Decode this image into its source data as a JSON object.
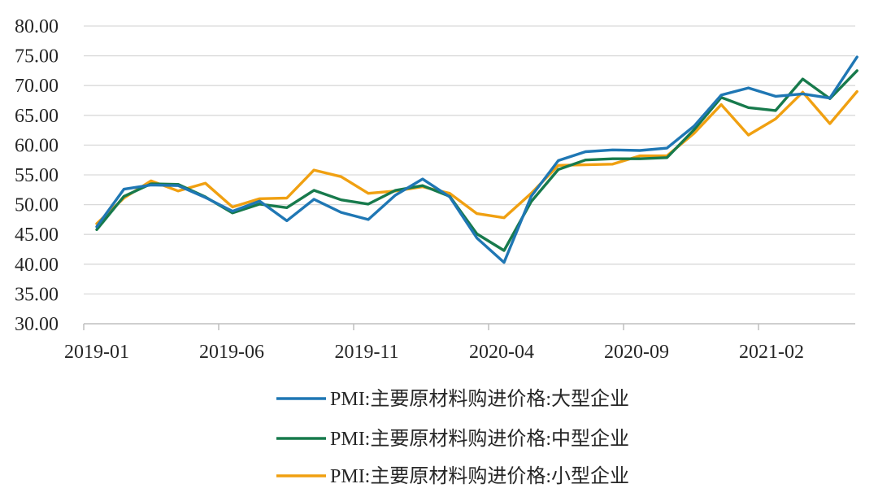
{
  "chart_data": {
    "type": "line",
    "x": [
      "2019-01",
      "2019-02",
      "2019-03",
      "2019-04",
      "2019-05",
      "2019-06",
      "2019-07",
      "2019-08",
      "2019-09",
      "2019-10",
      "2019-11",
      "2019-12",
      "2020-01",
      "2020-02",
      "2020-03",
      "2020-04",
      "2020-05",
      "2020-06",
      "2020-07",
      "2020-08",
      "2020-09",
      "2020-10",
      "2020-11",
      "2020-12",
      "2021-01",
      "2021-02",
      "2021-03",
      "2021-04",
      "2021-05"
    ],
    "x_tick_labels": [
      "2019-01",
      "2019-06",
      "2019-11",
      "2020-04",
      "2020-09",
      "2021-02"
    ],
    "y_tick_labels": [
      "80.00",
      "75.00",
      "70.00",
      "65.00",
      "60.00",
      "55.00",
      "50.00",
      "45.00",
      "40.00",
      "35.00",
      "30.00"
    ],
    "ylim": [
      30,
      80
    ],
    "grid": true,
    "legend_position": "bottom",
    "series": [
      {
        "name": "PMI:主要原材料购进价格:大型企业",
        "color": "#1f77b4",
        "values": [
          46.3,
          52.6,
          53.3,
          53.2,
          51.2,
          48.9,
          50.6,
          47.3,
          50.9,
          48.7,
          47.5,
          51.6,
          54.3,
          51.3,
          44.4,
          40.3,
          51.4,
          57.4,
          58.9,
          59.2,
          59.1,
          59.5,
          63.2,
          68.4,
          69.6,
          68.2,
          68.6,
          67.9,
          74.8
        ]
      },
      {
        "name": "PMI:主要原材料购进价格:中型企业",
        "color": "#177a4c",
        "values": [
          45.8,
          51.4,
          53.5,
          53.4,
          51.3,
          48.6,
          50.1,
          49.5,
          52.4,
          50.8,
          50.1,
          52.4,
          53.2,
          51.4,
          45.1,
          42.3,
          50.5,
          55.9,
          57.5,
          57.7,
          57.7,
          57.9,
          62.6,
          68.0,
          66.3,
          65.8,
          71.1,
          67.8,
          72.5
        ]
      },
      {
        "name": "PMI:主要原材料购进价格:小型企业",
        "color": "#f0a011",
        "values": [
          46.8,
          51.1,
          54.0,
          52.3,
          53.6,
          49.6,
          51.0,
          51.1,
          55.8,
          54.7,
          51.9,
          52.3,
          53.0,
          51.9,
          48.5,
          47.8,
          51.9,
          56.6,
          56.7,
          56.8,
          58.2,
          58.2,
          62.0,
          66.8,
          61.7,
          64.4,
          68.9,
          63.6,
          69.0
        ]
      }
    ]
  }
}
